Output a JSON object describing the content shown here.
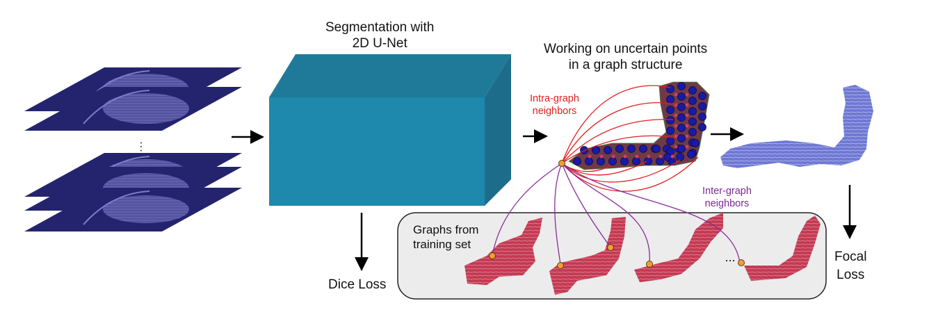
{
  "labels": {
    "segmentation_line1": "Segmentation with",
    "segmentation_line2": "2D U-Net",
    "graph_title_line1": "Working on uncertain points",
    "graph_title_line2": "in a graph structure",
    "intra_line1": "Intra-graph",
    "intra_line2": "neighbors",
    "inter_line1": "Inter-graph",
    "inter_line2": "neighbors",
    "training_line1": "Graphs from",
    "training_line2": "training set",
    "dice_loss": "Dice Loss",
    "focal_line1": "Focal",
    "focal_line2": "Loss",
    "slice_ellipsis": "⋮",
    "graph_ellipsis": "..."
  },
  "colors": {
    "slice_fill": "#24246e",
    "cube_front": "#1e88ad",
    "cube_top": "#1f7a9a",
    "cube_side": "#1d6d8a",
    "intra_graph": "#e02020",
    "inter_graph": "#8a2a9a",
    "node_blue": "#1a1aa8",
    "node_orange": "#f0a030",
    "graph_fill": "#7a3a4a",
    "output_blue": "#6e78d2",
    "training_red": "#c23a52",
    "training_panel": "#ececec"
  }
}
